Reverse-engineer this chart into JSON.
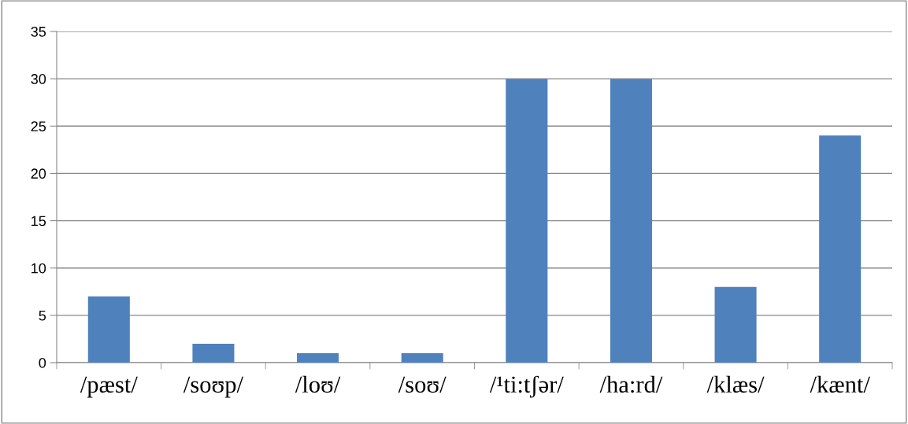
{
  "chart_data": {
    "type": "bar",
    "categories": [
      "/pæst/",
      "/soʊp/",
      "/loʊ/",
      "/soʊ/",
      "/¹ti:tʃər/",
      "/ha:rd/",
      "/klæs/",
      "/kænt/"
    ],
    "values": [
      7,
      2,
      1,
      1,
      30,
      30,
      8,
      24
    ],
    "color": "#4f81bd",
    "ylim": [
      0,
      35
    ],
    "yticks": [
      0,
      5,
      10,
      15,
      20,
      25,
      30,
      35
    ],
    "grid": "y"
  }
}
